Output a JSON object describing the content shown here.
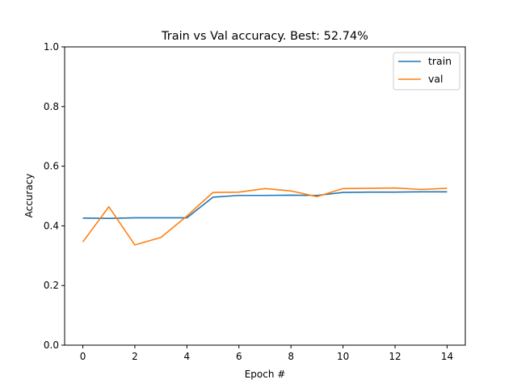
{
  "chart_data": {
    "type": "line",
    "title": "Train vs Val accuracy. Best: 52.74%",
    "xlabel": "Epoch #",
    "ylabel": "Accuracy",
    "x": [
      0,
      1,
      2,
      3,
      4,
      5,
      6,
      7,
      8,
      9,
      10,
      11,
      12,
      13,
      14
    ],
    "xlim": [
      -0.7,
      14.7
    ],
    "ylim": [
      0.0,
      1.0
    ],
    "xticks": [
      0,
      2,
      4,
      6,
      8,
      10,
      12,
      14
    ],
    "yticks": [
      0.0,
      0.2,
      0.4,
      0.6,
      0.8,
      1.0
    ],
    "xtick_labels": [
      "0",
      "2",
      "4",
      "6",
      "8",
      "10",
      "12",
      "14"
    ],
    "ytick_labels": [
      "0.0",
      "0.2",
      "0.4",
      "0.6",
      "0.8",
      "1.0"
    ],
    "grid": false,
    "legend_position": "top-right",
    "series": [
      {
        "name": "train",
        "color": "#1f77b4",
        "values": [
          0.426,
          0.425,
          0.427,
          0.427,
          0.427,
          0.496,
          0.502,
          0.502,
          0.503,
          0.502,
          0.512,
          0.513,
          0.513,
          0.514,
          0.514
        ]
      },
      {
        "name": "val",
        "color": "#ff7f0e",
        "values": [
          0.346,
          0.464,
          0.336,
          0.361,
          0.433,
          0.512,
          0.513,
          0.525,
          0.517,
          0.498,
          0.525,
          0.526,
          0.527,
          0.522,
          0.526
        ]
      }
    ]
  }
}
